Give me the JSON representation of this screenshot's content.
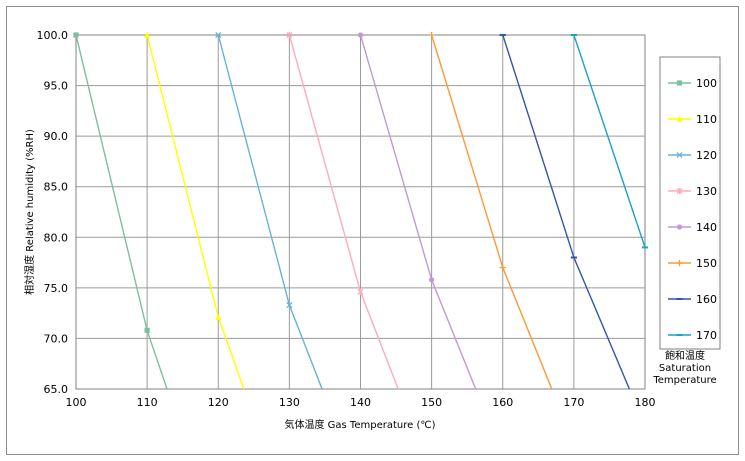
{
  "chart_data": {
    "type": "line",
    "title": "",
    "xlabel": "気体温度 Gas Temperature (℃)",
    "ylabel": "相対湿度 Relative humidity (%RH)",
    "xlim": [
      100,
      180
    ],
    "ylim": [
      65,
      100
    ],
    "x_ticks": [
      "100",
      "110",
      "120",
      "130",
      "140",
      "150",
      "160",
      "170",
      "180"
    ],
    "y_ticks": [
      "100.0",
      "95.0",
      "90.0",
      "85.0",
      "80.0",
      "75.0",
      "70.0",
      "65.0"
    ],
    "grid": true,
    "legend_placement": "right",
    "legend_title": [
      "飽和温度",
      "Saturation",
      "Temperature"
    ],
    "series": [
      {
        "name": "100",
        "color": "#7fbf9f",
        "marker": "square",
        "points": [
          [
            100,
            100
          ],
          [
            110,
            70.8
          ],
          [
            112.8,
            65
          ]
        ]
      },
      {
        "name": "110",
        "color": "#ffff00",
        "marker": "triangle",
        "points": [
          [
            110,
            100
          ],
          [
            120,
            72.1
          ],
          [
            123.6,
            65
          ]
        ]
      },
      {
        "name": "120",
        "color": "#66b3d9",
        "marker": "x",
        "points": [
          [
            120,
            100
          ],
          [
            130,
            73.3
          ],
          [
            134.6,
            65
          ]
        ]
      },
      {
        "name": "130",
        "color": "#ffaabb",
        "marker": "star",
        "points": [
          [
            130,
            100
          ],
          [
            140,
            74.6
          ],
          [
            145.3,
            65
          ]
        ]
      },
      {
        "name": "140",
        "color": "#c299d6",
        "marker": "circle",
        "points": [
          [
            140,
            100
          ],
          [
            150,
            75.8
          ],
          [
            156.2,
            65
          ]
        ]
      },
      {
        "name": "150",
        "color": "#ff9933",
        "marker": "plus",
        "points": [
          [
            150,
            100
          ],
          [
            160,
            77
          ],
          [
            166.9,
            65
          ]
        ]
      },
      {
        "name": "160",
        "color": "#3355aa",
        "marker": "dash",
        "points": [
          [
            160,
            100
          ],
          [
            170,
            78
          ],
          [
            177.8,
            65
          ]
        ]
      },
      {
        "name": "170",
        "color": "#1aa3c2",
        "marker": "dash",
        "points": [
          [
            170,
            100
          ],
          [
            180,
            79
          ]
        ]
      }
    ]
  }
}
